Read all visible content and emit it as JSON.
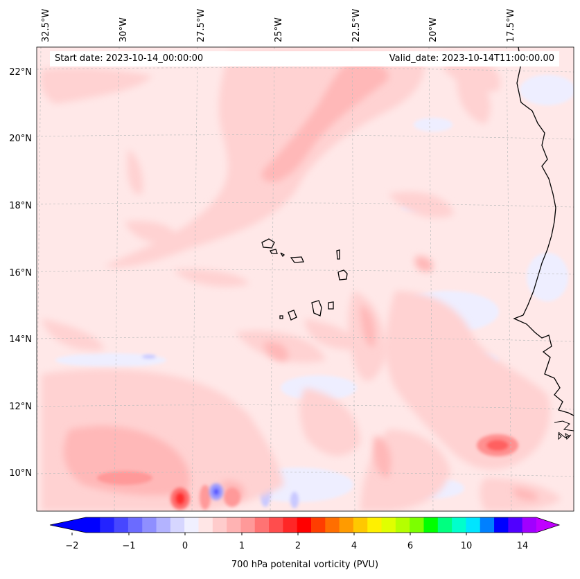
{
  "map": {
    "title_left": "Start date: 2023-10-14_00:00:00",
    "title_right": "Valid_date: 2023-10-14T11:00:00.00",
    "longitude_labels": [
      "32.5°W",
      "30°W",
      "27.5°W",
      "25°W",
      "22.5°W",
      "20°W",
      "17.5°W"
    ],
    "latitude_labels": [
      "22°N",
      "20°N",
      "18°N",
      "16°N",
      "14°N",
      "12°N",
      "10°N"
    ],
    "region": "Cape Verde Islands and West African coast (Senegal)",
    "variable": "700 hPa potenital vorticity (PVU)"
  },
  "colorbar": {
    "label": "700 hPa potenital vorticity (PVU)",
    "ticks": [
      "−2",
      "−1",
      "0",
      "1",
      "2",
      "4",
      "6",
      "10",
      "14"
    ],
    "colors": [
      "#0000ff",
      "#2323ff",
      "#4747ff",
      "#6b6bff",
      "#8f8fff",
      "#b3b3ff",
      "#d6d6ff",
      "#f0f0ff",
      "#ffe6e6",
      "#ffcccc",
      "#ffb3b3",
      "#ff9999",
      "#ff7373",
      "#ff4d4d",
      "#ff2626",
      "#ff0000",
      "#ff3d00",
      "#ff6e00",
      "#ff9b00",
      "#ffc800",
      "#fff000",
      "#e0ff00",
      "#b5ff00",
      "#7cff00",
      "#00ff00",
      "#00ff80",
      "#00ffcc",
      "#00e5ff",
      "#0080ff",
      "#0000ff",
      "#5000ff",
      "#a000ff"
    ],
    "under_color": "#0000ff",
    "over_color": "#c000ff"
  }
}
